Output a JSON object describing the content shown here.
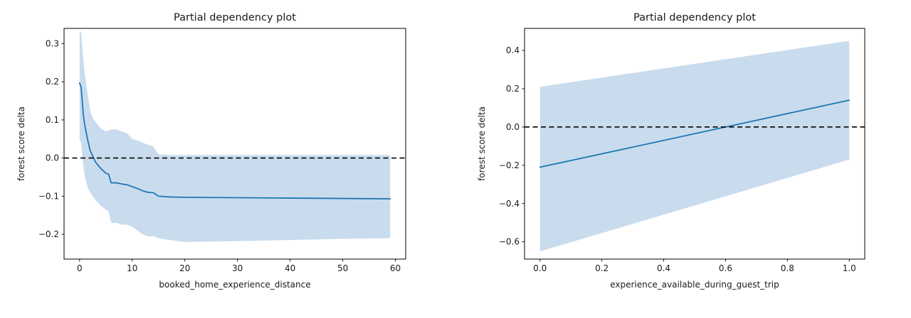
{
  "page": {
    "background": "#ffffff",
    "text_color": "#1a1a1a",
    "spine_color": "#000000"
  },
  "chart_data": [
    {
      "type": "line",
      "title": "Partial dependency plot",
      "xlabel": "booked_home_experience_distance",
      "ylabel": "forest score delta",
      "xlim": [
        -2.95,
        61.95
      ],
      "ylim": [
        -0.265,
        0.34
      ],
      "xticks": [
        0,
        10,
        20,
        30,
        40,
        50,
        60
      ],
      "xtick_labels": [
        "0",
        "10",
        "20",
        "30",
        "40",
        "50",
        "60"
      ],
      "yticks": [
        0.3,
        0.2,
        0.1,
        0.0,
        -0.1,
        -0.2
      ],
      "ytick_labels": [
        "0.3",
        "0.2",
        "0.1",
        "0.0",
        "−0.1",
        "−0.2"
      ],
      "grid": false,
      "legend": "none",
      "reference_line_y": 0.0,
      "line_color": "#1f77b4",
      "band_color": "#c9dcee",
      "reference_line_color": "#111111",
      "series": [
        {
          "name": "partial_dependence",
          "x": [
            0,
            0.3,
            0.7,
            1,
            1.5,
            2,
            2.5,
            3,
            4,
            5,
            5.5,
            6,
            7,
            8,
            9,
            10,
            11,
            12,
            13,
            14,
            15,
            17,
            20,
            30,
            40,
            50,
            59
          ],
          "y": [
            0.197,
            0.185,
            0.115,
            0.085,
            0.05,
            0.02,
            0.005,
            -0.01,
            -0.027,
            -0.04,
            -0.042,
            -0.065,
            -0.065,
            -0.068,
            -0.07,
            -0.075,
            -0.08,
            -0.086,
            -0.09,
            -0.091,
            -0.1,
            -0.102,
            -0.103,
            -0.104,
            -0.105,
            -0.106,
            -0.107
          ],
          "band_upper": [
            0.335,
            0.33,
            0.26,
            0.22,
            0.17,
            0.125,
            0.105,
            0.095,
            0.078,
            0.07,
            0.072,
            0.075,
            0.075,
            0.07,
            0.065,
            0.05,
            0.046,
            0.04,
            0.035,
            0.03,
            0.01,
            0.008,
            0.008,
            0.008,
            0.008,
            0.008,
            0.008
          ],
          "band_lower": [
            0.05,
            0.04,
            -0.02,
            -0.05,
            -0.075,
            -0.09,
            -0.1,
            -0.11,
            -0.125,
            -0.135,
            -0.14,
            -0.17,
            -0.17,
            -0.175,
            -0.175,
            -0.18,
            -0.19,
            -0.2,
            -0.205,
            -0.205,
            -0.21,
            -0.215,
            -0.22,
            -0.218,
            -0.215,
            -0.212,
            -0.21
          ]
        }
      ]
    },
    {
      "type": "line",
      "title": "Partial dependency plot",
      "xlabel": "experience_available_during_guest_trip",
      "ylabel": "forest score delta",
      "xlim": [
        -0.05,
        1.05
      ],
      "ylim": [
        -0.69,
        0.515
      ],
      "xticks": [
        0.0,
        0.2,
        0.4,
        0.6,
        0.8,
        1.0
      ],
      "xtick_labels": [
        "0.0",
        "0.2",
        "0.4",
        "0.6",
        "0.8",
        "1.0"
      ],
      "yticks": [
        0.4,
        0.2,
        0.0,
        -0.2,
        -0.4,
        -0.6
      ],
      "ytick_labels": [
        "0.4",
        "0.2",
        "0.0",
        "−0.2",
        "−0.4",
        "−0.6"
      ],
      "grid": false,
      "legend": "none",
      "reference_line_y": 0.0,
      "line_color": "#1f77b4",
      "band_color": "#c9dcee",
      "reference_line_color": "#111111",
      "series": [
        {
          "name": "partial_dependence",
          "x": [
            0,
            1
          ],
          "y": [
            -0.21,
            0.14
          ],
          "band_upper": [
            0.21,
            0.45
          ],
          "band_lower": [
            -0.65,
            -0.17
          ]
        }
      ]
    }
  ]
}
